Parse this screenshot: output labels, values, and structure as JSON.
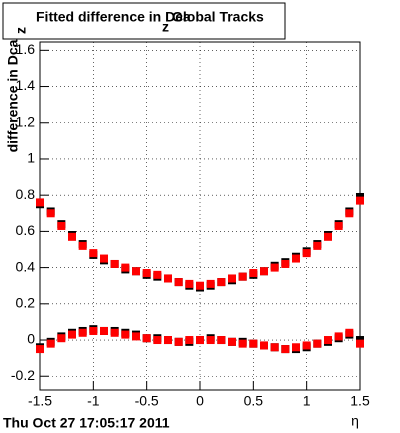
{
  "chart_data": {
    "type": "scatter",
    "title": "Fitted difference in Dca",
    "title_subscript": "z",
    "title_suffix": "Global Tracks",
    "y_label": "difference in Dca",
    "y_label_subscript": "z",
    "x_label": "η",
    "timestamp": "Thu Oct 27 17:05:17 2011",
    "x": [
      -1.5,
      -1.4,
      -1.3,
      -1.2,
      -1.1,
      -1.0,
      -0.9,
      -0.8,
      -0.7,
      -0.6,
      -0.5,
      -0.4,
      -0.3,
      -0.2,
      -0.1,
      0.0,
      0.1,
      0.2,
      0.3,
      0.4,
      0.5,
      0.6,
      0.7,
      0.8,
      0.9,
      1.0,
      1.1,
      1.2,
      1.3,
      1.4,
      1.5
    ],
    "series": [
      {
        "color": "#000000",
        "values": [
          0.75,
          0.71,
          0.64,
          0.58,
          0.53,
          0.47,
          0.44,
          0.42,
          0.39,
          0.38,
          0.36,
          0.35,
          0.34,
          0.32,
          0.3,
          0.29,
          0.3,
          0.32,
          0.33,
          0.35,
          0.36,
          0.38,
          0.41,
          0.43,
          0.46,
          0.49,
          0.53,
          0.58,
          0.64,
          0.71,
          0.79
        ]
      },
      {
        "color": "#000000",
        "values": [
          -0.04,
          -0.01,
          0.02,
          0.04,
          0.05,
          0.06,
          0.05,
          0.05,
          0.04,
          0.03,
          0.01,
          0.01,
          0.0,
          -0.01,
          -0.01,
          0.0,
          0.01,
          0.0,
          -0.01,
          -0.01,
          -0.02,
          -0.03,
          -0.04,
          -0.05,
          -0.05,
          -0.04,
          -0.02,
          -0.01,
          0.01,
          0.03,
          0.0
        ]
      },
      {
        "color": "#ff0000",
        "values": [
          0.76,
          0.7,
          0.63,
          0.57,
          0.52,
          0.48,
          0.45,
          0.42,
          0.4,
          0.38,
          0.37,
          0.36,
          0.34,
          0.32,
          0.31,
          0.3,
          0.31,
          0.32,
          0.34,
          0.35,
          0.37,
          0.38,
          0.4,
          0.42,
          0.45,
          0.48,
          0.52,
          0.57,
          0.63,
          0.7,
          0.77
        ]
      },
      {
        "color": "#ff0000",
        "values": [
          -0.05,
          -0.02,
          0.01,
          0.03,
          0.04,
          0.05,
          0.05,
          0.04,
          0.03,
          0.02,
          0.01,
          0.0,
          0.0,
          -0.01,
          0.0,
          0.0,
          0.0,
          0.0,
          -0.01,
          -0.02,
          -0.02,
          -0.03,
          -0.04,
          -0.05,
          -0.04,
          -0.03,
          -0.02,
          0.0,
          0.02,
          0.04,
          -0.02
        ]
      }
    ],
    "xlim": [
      -1.5,
      1.5
    ],
    "xticks": [
      -1.5,
      -1,
      -0.5,
      0,
      0.5,
      1,
      1.5
    ],
    "ylim": [
      -0.276,
      1.646
    ],
    "yticks": [
      -0.2,
      0,
      0.2,
      0.4,
      0.6,
      0.8,
      1,
      1.2,
      1.4,
      1.6
    ],
    "grid": true
  }
}
